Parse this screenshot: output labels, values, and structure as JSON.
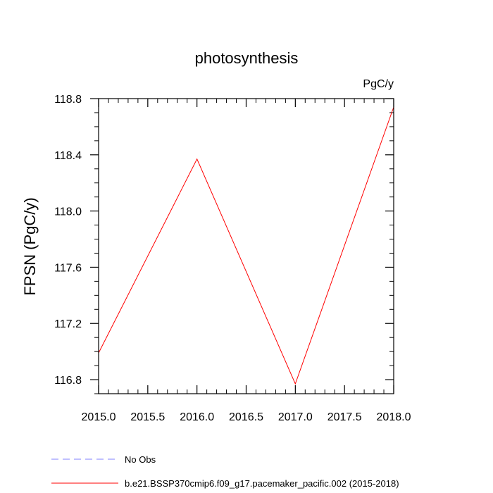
{
  "chart_data": {
    "type": "line",
    "title": "photosynthesis",
    "units_label": "PgC/y",
    "xlabel": "",
    "ylabel": "FPSN  (PgC/y)",
    "xlim": [
      2015.0,
      2018.0
    ],
    "ylim": [
      116.7,
      118.8
    ],
    "x_ticks": [
      2015.0,
      2015.5,
      2016.0,
      2016.5,
      2017.0,
      2017.5,
      2018.0
    ],
    "x_tick_labels": [
      "2015.0",
      "2015.5",
      "2016.0",
      "2016.5",
      "2017.0",
      "2017.5",
      "2018.0"
    ],
    "y_ticks": [
      116.8,
      117.2,
      117.6,
      118.0,
      118.4,
      118.8
    ],
    "y_tick_labels": [
      "116.8",
      "117.2",
      "117.6",
      "118.0",
      "118.4",
      "118.8"
    ],
    "grid": false,
    "legend_position": "bottom",
    "series": [
      {
        "name": "b.e21.BSSP370cmip6.f09_g17.pacemaker_pacific.002 (2015-2018)",
        "color": "#ff0000",
        "dash": "solid",
        "x": [
          2015.0,
          2016.0,
          2017.0,
          2018.0
        ],
        "y": [
          116.99,
          118.37,
          116.77,
          118.74
        ]
      },
      {
        "name": "No Obs",
        "color": "#8080ff",
        "dash": "dashed",
        "x": [],
        "y": []
      }
    ]
  }
}
